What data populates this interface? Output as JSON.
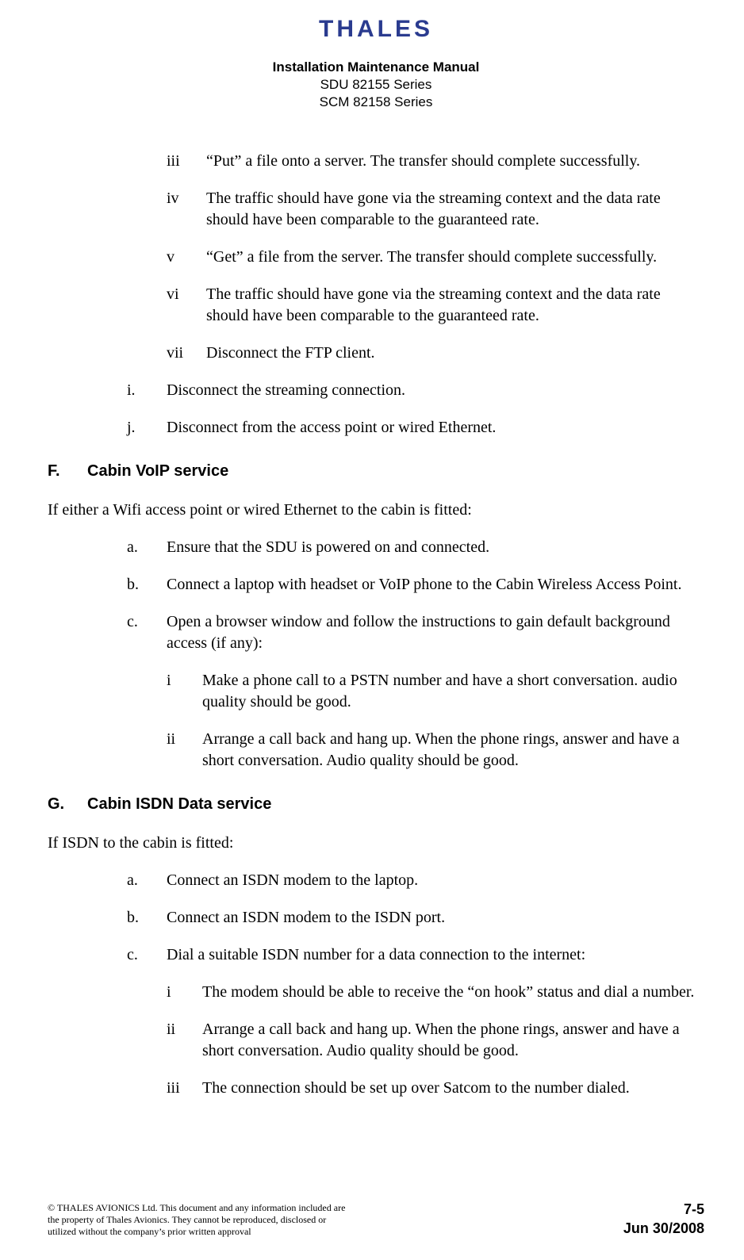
{
  "logo_text": "THALES",
  "header": {
    "title": "Installation Maintenance Manual",
    "line1": "SDU 82155 Series",
    "line2": "SCM 82158 Series"
  },
  "top_roman": [
    {
      "marker": "iii",
      "text": "“Put” a file onto a server. The transfer should complete successfully."
    },
    {
      "marker": "iv",
      "text": "The traffic should have gone via the streaming context and the data rate should have been comparable to the guaranteed rate."
    },
    {
      "marker": "v",
      "text": "“Get” a file from the server. The transfer should complete successfully."
    },
    {
      "marker": "vi",
      "text": "The traffic should have gone via the streaming context and the data rate should have been comparable to the guaranteed rate."
    },
    {
      "marker": "vii",
      "text": "Disconnect the FTP client."
    }
  ],
  "top_alpha": [
    {
      "marker": "i.",
      "text": "Disconnect the streaming connection."
    },
    {
      "marker": "j.",
      "text": "Disconnect from the access point or wired Ethernet."
    }
  ],
  "section_f": {
    "marker": "F.",
    "title": "Cabin VoIP service",
    "intro": "If either a Wifi access point or wired Ethernet to the cabin is fitted:",
    "items": [
      {
        "marker": "a.",
        "text": "Ensure that the SDU is powered on and connected."
      },
      {
        "marker": "b.",
        "text": "Connect a laptop with headset or VoIP phone to the Cabin Wireless Access Point."
      },
      {
        "marker": "c.",
        "text": "Open a browser window and follow the instructions to gain default background access (if any):"
      }
    ],
    "subitems": [
      {
        "marker": "i",
        "text": "Make a phone call to a PSTN number and have a short conversation. audio quality should be good."
      },
      {
        "marker": "ii",
        "text": "Arrange a call back and hang up. When the phone rings, answer and have a short conversation. Audio quality should be good."
      }
    ]
  },
  "section_g": {
    "marker": "G.",
    "title": "Cabin ISDN Data service",
    "intro": "If ISDN to the cabin is fitted:",
    "items": [
      {
        "marker": "a.",
        "text": "Connect an ISDN modem to the laptop."
      },
      {
        "marker": "b.",
        "text": "Connect an ISDN modem to the ISDN port."
      },
      {
        "marker": "c.",
        "text": "Dial a suitable ISDN number for a data connection to the internet:"
      }
    ],
    "subitems": [
      {
        "marker": "i",
        "text": "The modem should be able to receive the “on hook” status and dial a number."
      },
      {
        "marker": "ii",
        "text": "Arrange a call back and hang up. When the phone rings, answer and have a short conversation. Audio quality should be good."
      },
      {
        "marker": "iii",
        "text": "The connection should be set up over Satcom to the number dialed."
      }
    ]
  },
  "footer": {
    "left": "© THALES AVIONICS Ltd. This document and any information included are the property of Thales Avionics. They cannot be reproduced, disclosed or utilized without the company’s prior written approval",
    "page": "7-5",
    "date": "Jun 30/2008"
  }
}
